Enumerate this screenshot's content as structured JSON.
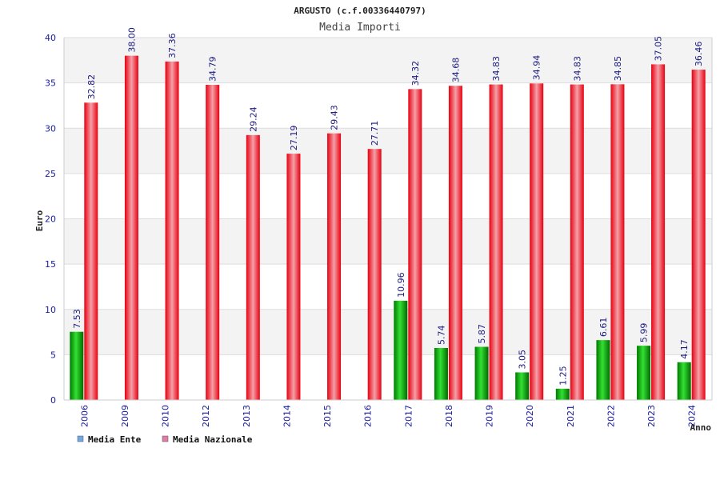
{
  "chart_data": {
    "type": "bar",
    "title": "ARGUSTO (c.f.00336440797)",
    "subtitle": "Media Importi",
    "xlabel": "Anno",
    "ylabel": "Euro",
    "ylim": [
      0,
      40
    ],
    "yticks": [
      "0",
      "5",
      "10",
      "15",
      "20",
      "25",
      "30",
      "35",
      "40"
    ],
    "grid": true,
    "legend_position": "bottom-left",
    "categories": [
      "2006",
      "2009",
      "2010",
      "2012",
      "2013",
      "2014",
      "2015",
      "2016",
      "2017",
      "2018",
      "2019",
      "2020",
      "2021",
      "2022",
      "2023",
      "2024"
    ],
    "series": [
      {
        "name": "Media Ente",
        "color": "#00b000",
        "legend_color": "#6fa8e6",
        "values": [
          7.53,
          null,
          null,
          null,
          null,
          null,
          null,
          null,
          10.96,
          5.74,
          5.87,
          3.05,
          1.25,
          6.61,
          5.99,
          4.17
        ],
        "labels": [
          "7.53",
          "",
          "",
          "",
          "",
          "",
          "",
          "",
          "10.96",
          "5.74",
          "5.87",
          "3.05",
          "1.25",
          "6.61",
          "5.99",
          "4.17"
        ]
      },
      {
        "name": "Media Nazionale",
        "color": "#e8101c",
        "legend_color": "#e07aa8",
        "values": [
          32.82,
          38.0,
          37.36,
          34.79,
          29.24,
          27.19,
          29.43,
          27.71,
          34.32,
          34.68,
          34.83,
          34.94,
          34.83,
          34.85,
          37.05,
          36.46
        ],
        "labels": [
          "32.82",
          "38.00",
          "37.36",
          "34.79",
          "29.24",
          "27.19",
          "29.43",
          "27.71",
          "34.32",
          "34.68",
          "34.83",
          "34.94",
          "34.83",
          "34.85",
          "37.05",
          "36.46"
        ]
      }
    ]
  }
}
